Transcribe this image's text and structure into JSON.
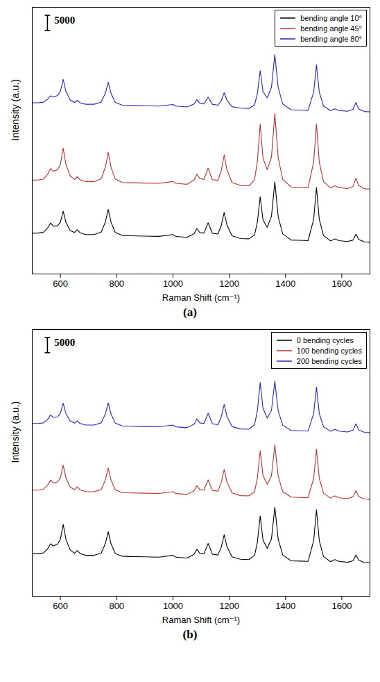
{
  "chart_data": [
    {
      "type": "line",
      "caption": "(a)",
      "x_label": "Raman Shift (cm⁻¹)",
      "y_label": "Intensity (a.u.)",
      "xlim": [
        500,
        1700
      ],
      "xticks": [
        600,
        800,
        1000,
        1200,
        1400,
        1600
      ],
      "ylim": [
        0,
        88000
      ],
      "tick_labels": "x",
      "legend": "top-right",
      "scale_bar": 5000,
      "x": [
        500,
        520,
        540,
        555,
        565,
        575,
        590,
        600,
        610,
        620,
        635,
        650,
        660,
        670,
        690,
        720,
        745,
        760,
        770,
        780,
        795,
        820,
        850,
        900,
        950,
        1000,
        1010,
        1050,
        1075,
        1085,
        1095,
        1110,
        1125,
        1140,
        1160,
        1172,
        1182,
        1192,
        1210,
        1240,
        1270,
        1290,
        1300,
        1310,
        1320,
        1335,
        1350,
        1362,
        1374,
        1390,
        1420,
        1450,
        1480,
        1500,
        1510,
        1520,
        1535,
        1560,
        1575,
        1590,
        1620,
        1640,
        1650,
        1660,
        1680,
        1700
      ],
      "series": [
        {
          "name": "bending angle 10°",
          "color": "#000000",
          "values": [
            13500,
            13500,
            13800,
            15200,
            16800,
            15800,
            15900,
            17100,
            20700,
            17000,
            14300,
            13700,
            14600,
            13600,
            13000,
            13000,
            13800,
            17200,
            21300,
            17100,
            13700,
            12700,
            12600,
            12500,
            12400,
            13000,
            12400,
            12100,
            13300,
            15000,
            13700,
            13500,
            16900,
            13400,
            13200,
            16100,
            20300,
            16100,
            12600,
            11700,
            11600,
            12900,
            17100,
            25500,
            17800,
            15400,
            19000,
            30400,
            18900,
            13200,
            11200,
            11100,
            11000,
            18000,
            28500,
            18000,
            12700,
            10900,
            11600,
            11000,
            10700,
            11200,
            13100,
            11400,
            10600,
            10500
          ]
        },
        {
          "name": "bending angle 45°",
          "color": "#b8312f",
          "values": [
            31000,
            31000,
            31300,
            32900,
            34800,
            33900,
            34400,
            36200,
            41500,
            36100,
            32300,
            31200,
            32100,
            31100,
            30500,
            30500,
            31400,
            35300,
            40100,
            35200,
            31300,
            30200,
            30100,
            30000,
            29900,
            30500,
            29900,
            29600,
            31000,
            33000,
            31500,
            31200,
            34900,
            31100,
            30900,
            34300,
            39300,
            34300,
            30200,
            29200,
            29100,
            31100,
            37200,
            49500,
            38200,
            34400,
            38500,
            52900,
            38400,
            31200,
            28700,
            28600,
            28500,
            36900,
            49500,
            36900,
            30500,
            28400,
            29100,
            28500,
            28200,
            28900,
            31600,
            29200,
            28100,
            28000
          ]
        },
        {
          "name": "bending angle 80°",
          "color": "#2424b8",
          "values": [
            56500,
            56500,
            56700,
            57700,
            58800,
            58400,
            58900,
            60300,
            64200,
            60200,
            57400,
            56600,
            57300,
            56500,
            56000,
            56000,
            56700,
            59700,
            63300,
            59600,
            56600,
            55700,
            55600,
            55500,
            55400,
            55900,
            55400,
            55100,
            56100,
            57500,
            56400,
            56100,
            58400,
            56000,
            55700,
            57300,
            59800,
            57300,
            55200,
            54700,
            54600,
            55800,
            59500,
            67100,
            60200,
            58100,
            61600,
            72400,
            61500,
            56100,
            54200,
            54100,
            54000,
            60000,
            69000,
            60000,
            55400,
            53900,
            54500,
            53900,
            53700,
            54300,
            56600,
            54500,
            53600,
            53500
          ]
        }
      ]
    },
    {
      "type": "line",
      "caption": "(b)",
      "x_label": "Raman Shift (cm⁻¹)",
      "y_label": "Intensity (a.u.)",
      "xlim": [
        500,
        1700
      ],
      "xticks": [
        600,
        800,
        1000,
        1200,
        1400,
        1600
      ],
      "ylim": [
        0,
        88000
      ],
      "tick_labels": "x",
      "legend": "top-right",
      "scale_bar": 5000,
      "x": [
        500,
        520,
        540,
        555,
        565,
        575,
        590,
        600,
        610,
        620,
        635,
        650,
        660,
        670,
        690,
        720,
        745,
        760,
        770,
        780,
        795,
        820,
        850,
        900,
        950,
        1000,
        1010,
        1050,
        1075,
        1085,
        1095,
        1110,
        1125,
        1140,
        1160,
        1172,
        1182,
        1192,
        1210,
        1240,
        1270,
        1290,
        1300,
        1310,
        1320,
        1335,
        1350,
        1362,
        1374,
        1390,
        1420,
        1450,
        1480,
        1500,
        1510,
        1520,
        1535,
        1560,
        1575,
        1590,
        1620,
        1640,
        1650,
        1660,
        1680,
        1700
      ],
      "series": [
        {
          "name": "0 bending cycles",
          "color": "#000000",
          "values": [
            14000,
            14000,
            14300,
            15700,
            17300,
            16600,
            17200,
            18800,
            23700,
            18700,
            15200,
            14200,
            15100,
            14100,
            13500,
            13500,
            14200,
            17400,
            21300,
            17300,
            14100,
            13200,
            13100,
            13000,
            12900,
            13500,
            12900,
            12600,
            13800,
            15500,
            14200,
            14000,
            17400,
            13900,
            13600,
            16300,
            20300,
            16300,
            13000,
            12200,
            12100,
            13500,
            17800,
            26500,
            18500,
            15800,
            18900,
            29400,
            18800,
            13600,
            11700,
            11600,
            11500,
            18300,
            28500,
            18300,
            13100,
            11400,
            12100,
            11500,
            11200,
            11700,
            13600,
            11900,
            11100,
            11000
          ]
        },
        {
          "name": "100 bending cycles",
          "color": "#b8312f",
          "values": [
            35000,
            35000,
            35300,
            36700,
            38300,
            37400,
            37700,
            39100,
            43200,
            39000,
            36000,
            35200,
            36100,
            35100,
            34500,
            34500,
            35200,
            38400,
            42300,
            38300,
            35100,
            34200,
            34100,
            34000,
            33900,
            34500,
            33900,
            33600,
            34800,
            36500,
            35200,
            35000,
            38400,
            34900,
            34700,
            37600,
            41800,
            37600,
            34100,
            33200,
            33100,
            34500,
            39000,
            48000,
            39800,
            36900,
            39700,
            49900,
            39600,
            34500,
            32700,
            32600,
            32500,
            38900,
            48500,
            38900,
            34000,
            32400,
            33100,
            32500,
            32200,
            32800,
            34900,
            32900,
            32100,
            32000
          ]
        },
        {
          "name": "200 bending cycles",
          "color": "#2424b8",
          "values": [
            57000,
            57000,
            57200,
            58400,
            59800,
            59000,
            59200,
            60300,
            63700,
            60200,
            57800,
            57100,
            57900,
            57000,
            56500,
            56500,
            57200,
            60200,
            63800,
            60100,
            57100,
            56200,
            56100,
            56000,
            55900,
            56500,
            55900,
            55600,
            56800,
            58500,
            57200,
            57000,
            60400,
            56900,
            56600,
            59300,
            63300,
            59300,
            56000,
            55200,
            55100,
            56600,
            61200,
            70500,
            62000,
            58800,
            61300,
            70900,
            61200,
            56400,
            54700,
            54600,
            54500,
            60300,
            69000,
            60300,
            55900,
            54400,
            55100,
            54500,
            54200,
            54800,
            56900,
            54900,
            54100,
            54000
          ]
        }
      ]
    }
  ]
}
